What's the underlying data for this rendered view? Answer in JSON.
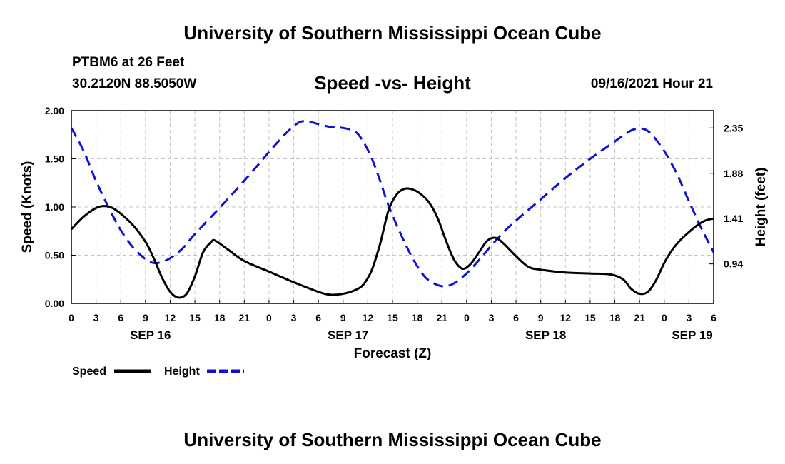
{
  "page": {
    "title_top": "University of Southern Mississippi Ocean Cube",
    "title_bottom": "University of Southern Mississippi Ocean Cube",
    "station_line1": "PTBM6 at 26 Feet",
    "station_line2": "30.2120N  88.5050W",
    "chart_title": "Speed -vs- Height",
    "run_time": "09/16/2021 Hour 21"
  },
  "chart_data": {
    "type": "line",
    "title": "Speed -vs- Height",
    "xlabel": "Forecast (Z)",
    "ylabel": "Speed (Knots)",
    "y2label": "Height (feet)",
    "x_unit": "hours since SEP 16 00Z",
    "xlim": [
      0,
      78
    ],
    "ylim": [
      0,
      2.0
    ],
    "y2lim": [
      0.53,
      2.53
    ],
    "grid": true,
    "x_ticks": [
      {
        "x": 0,
        "label": "0"
      },
      {
        "x": 3,
        "label": "3"
      },
      {
        "x": 6,
        "label": "6"
      },
      {
        "x": 9,
        "label": "9"
      },
      {
        "x": 12,
        "label": "12"
      },
      {
        "x": 15,
        "label": "15"
      },
      {
        "x": 18,
        "label": "18"
      },
      {
        "x": 21,
        "label": "21"
      },
      {
        "x": 24,
        "label": "0"
      },
      {
        "x": 27,
        "label": "3"
      },
      {
        "x": 30,
        "label": "6"
      },
      {
        "x": 33,
        "label": "9"
      },
      {
        "x": 36,
        "label": "12"
      },
      {
        "x": 39,
        "label": "15"
      },
      {
        "x": 42,
        "label": "18"
      },
      {
        "x": 45,
        "label": "21"
      },
      {
        "x": 48,
        "label": "0"
      },
      {
        "x": 51,
        "label": "3"
      },
      {
        "x": 54,
        "label": "6"
      },
      {
        "x": 57,
        "label": "9"
      },
      {
        "x": 60,
        "label": "12"
      },
      {
        "x": 63,
        "label": "15"
      },
      {
        "x": 66,
        "label": "18"
      },
      {
        "x": 69,
        "label": "21"
      },
      {
        "x": 72,
        "label": "0"
      },
      {
        "x": 75,
        "label": "3"
      },
      {
        "x": 78,
        "label": "6"
      }
    ],
    "date_labels": [
      {
        "x": 9.6,
        "label": "SEP 16"
      },
      {
        "x": 33.6,
        "label": "SEP 17"
      },
      {
        "x": 57.6,
        "label": "SEP 18"
      },
      {
        "x": 75.4,
        "label": "SEP 19"
      }
    ],
    "y_ticks": [
      {
        "v": 0,
        "label": "0.00"
      },
      {
        "v": 0.5,
        "label": "0.50"
      },
      {
        "v": 1.0,
        "label": "1.00"
      },
      {
        "v": 1.5,
        "label": "1.50"
      },
      {
        "v": 2.0,
        "label": "2.00"
      }
    ],
    "y2_ticks": [
      {
        "v": 0.94,
        "label": "0.94"
      },
      {
        "v": 1.41,
        "label": "1.41"
      },
      {
        "v": 1.88,
        "label": "1.88"
      },
      {
        "v": 2.35,
        "label": "2.35"
      }
    ],
    "series": [
      {
        "name": "Speed",
        "axis": "left",
        "color": "#000000",
        "dash": "solid",
        "points": [
          [
            0,
            0.77
          ],
          [
            1.5,
            0.9
          ],
          [
            3,
            0.99
          ],
          [
            4,
            1.01
          ],
          [
            5,
            0.99
          ],
          [
            6,
            0.93
          ],
          [
            7.5,
            0.81
          ],
          [
            9,
            0.64
          ],
          [
            10,
            0.47
          ],
          [
            11,
            0.27
          ],
          [
            12,
            0.12
          ],
          [
            13,
            0.06
          ],
          [
            14,
            0.1
          ],
          [
            15,
            0.28
          ],
          [
            16,
            0.53
          ],
          [
            17,
            0.64
          ],
          [
            17.5,
            0.65
          ],
          [
            19,
            0.56
          ],
          [
            21,
            0.44
          ],
          [
            24,
            0.33
          ],
          [
            27,
            0.22
          ],
          [
            30,
            0.12
          ],
          [
            31.5,
            0.09
          ],
          [
            33,
            0.1
          ],
          [
            34.5,
            0.14
          ],
          [
            35.5,
            0.2
          ],
          [
            36.5,
            0.35
          ],
          [
            37.5,
            0.62
          ],
          [
            38.5,
            0.96
          ],
          [
            39.5,
            1.13
          ],
          [
            40.5,
            1.19
          ],
          [
            41.5,
            1.18
          ],
          [
            42.5,
            1.13
          ],
          [
            43.5,
            1.04
          ],
          [
            44.5,
            0.88
          ],
          [
            45.5,
            0.65
          ],
          [
            46.5,
            0.45
          ],
          [
            47.5,
            0.36
          ],
          [
            48.5,
            0.41
          ],
          [
            49.5,
            0.53
          ],
          [
            50.5,
            0.65
          ],
          [
            51.5,
            0.68
          ],
          [
            52.5,
            0.62
          ],
          [
            54,
            0.49
          ],
          [
            55.5,
            0.38
          ],
          [
            57,
            0.35
          ],
          [
            60,
            0.32
          ],
          [
            63,
            0.31
          ],
          [
            65.5,
            0.3
          ],
          [
            67,
            0.25
          ],
          [
            68,
            0.15
          ],
          [
            69,
            0.1
          ],
          [
            70,
            0.12
          ],
          [
            71,
            0.24
          ],
          [
            72,
            0.42
          ],
          [
            73,
            0.56
          ],
          [
            74,
            0.66
          ],
          [
            75,
            0.74
          ],
          [
            76,
            0.81
          ],
          [
            77,
            0.86
          ],
          [
            78,
            0.88
          ]
        ]
      },
      {
        "name": "Height",
        "axis": "right",
        "color": "#1010d0",
        "dash": "dashed",
        "points": [
          [
            0,
            2.35
          ],
          [
            1.5,
            2.11
          ],
          [
            3,
            1.8
          ],
          [
            4.5,
            1.53
          ],
          [
            6,
            1.29
          ],
          [
            7.5,
            1.11
          ],
          [
            9,
            0.99
          ],
          [
            10,
            0.95
          ],
          [
            11,
            0.96
          ],
          [
            12,
            1.0
          ],
          [
            13.5,
            1.1
          ],
          [
            15,
            1.25
          ],
          [
            17,
            1.43
          ],
          [
            19.5,
            1.66
          ],
          [
            22,
            1.9
          ],
          [
            24,
            2.1
          ],
          [
            26,
            2.29
          ],
          [
            27.5,
            2.4
          ],
          [
            28.5,
            2.42
          ],
          [
            30,
            2.39
          ],
          [
            31.5,
            2.36
          ],
          [
            33,
            2.35
          ],
          [
            34.5,
            2.31
          ],
          [
            35.5,
            2.2
          ],
          [
            36.5,
            2.03
          ],
          [
            37.5,
            1.8
          ],
          [
            38.5,
            1.55
          ],
          [
            40,
            1.25
          ],
          [
            41.5,
            0.99
          ],
          [
            43,
            0.8
          ],
          [
            44.5,
            0.72
          ],
          [
            45.5,
            0.71
          ],
          [
            46.5,
            0.74
          ],
          [
            48,
            0.84
          ],
          [
            49.5,
            0.98
          ],
          [
            51,
            1.13
          ],
          [
            52.5,
            1.27
          ],
          [
            54,
            1.39
          ],
          [
            57,
            1.61
          ],
          [
            60,
            1.83
          ],
          [
            63,
            2.03
          ],
          [
            65.5,
            2.18
          ],
          [
            67.5,
            2.3
          ],
          [
            68.5,
            2.34
          ],
          [
            69.5,
            2.34
          ],
          [
            70.5,
            2.28
          ],
          [
            72,
            2.11
          ],
          [
            73.5,
            1.88
          ],
          [
            75,
            1.59
          ],
          [
            76.5,
            1.31
          ],
          [
            78,
            1.06
          ]
        ]
      }
    ],
    "legend": {
      "placement": "bottom-left",
      "entries": [
        {
          "label": "Speed",
          "series": "Speed"
        },
        {
          "label": "Height",
          "series": "Height"
        }
      ]
    }
  }
}
